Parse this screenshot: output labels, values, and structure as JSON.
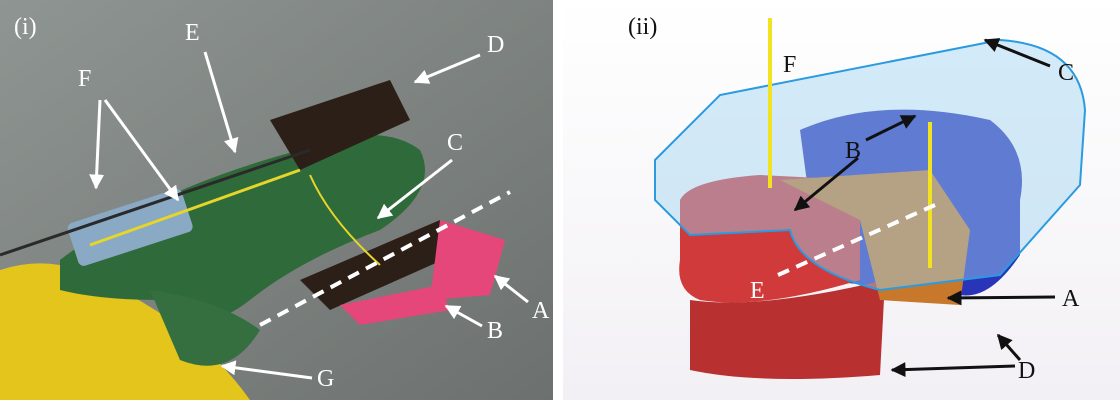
{
  "panels": [
    {
      "label": "(i)",
      "callouts": {
        "A": "A",
        "B": "B",
        "C": "C",
        "D": "D",
        "E": "E",
        "F": "F",
        "G": "G"
      }
    },
    {
      "label": "(ii)",
      "callouts": {
        "A": "A",
        "B": "B",
        "C": "C",
        "D": "D",
        "E": "E",
        "F": "F"
      }
    }
  ]
}
